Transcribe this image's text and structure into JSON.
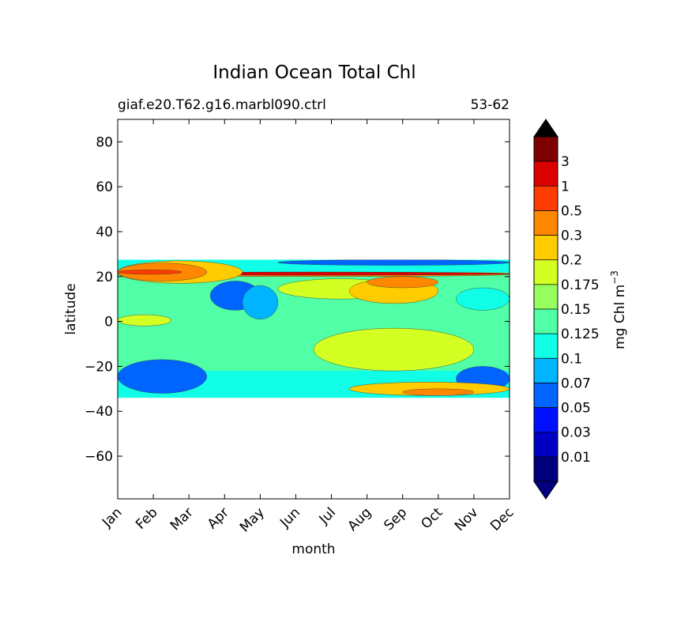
{
  "chart_data": {
    "type": "heatmap",
    "title": "Indian Ocean Total Chl",
    "subtitle_left": "giaf.e20.T62.g16.marbl090.ctrl",
    "subtitle_right": "53-62",
    "xlabel": "month",
    "ylabel": "latitude",
    "x_ticks": [
      "Jan",
      "Feb",
      "Mar",
      "Apr",
      "May",
      "Jun",
      "Jul",
      "Aug",
      "Sep",
      "Oct",
      "Nov",
      "Dec"
    ],
    "y_ticks": [
      "80",
      "60",
      "40",
      "20",
      "0",
      "−20",
      "−40",
      "−60"
    ],
    "y_tick_values": [
      80,
      60,
      40,
      20,
      0,
      -20,
      -40,
      -60
    ],
    "xlim": [
      1,
      12
    ],
    "ylim": [
      -79,
      90
    ],
    "data_lat_range": [
      -34,
      27.5
    ],
    "colorbar": {
      "label": "mg Chl m",
      "label_exponent": "−3",
      "tick_labels": [
        "0.01",
        "0.03",
        "0.05",
        "0.07",
        "0.1",
        "0.125",
        "0.15",
        "0.175",
        "0.2",
        "0.3",
        "0.5",
        "1",
        "3"
      ],
      "colors": [
        "#00007f",
        "#0000c4",
        "#0010ff",
        "#0064ff",
        "#00b4ff",
        "#10ffe6",
        "#50ffa6",
        "#96ff60",
        "#d4ff22",
        "#ffcc00",
        "#ff8800",
        "#ff3c00",
        "#dd0000",
        "#7f0000"
      ],
      "under_color": "#000080",
      "over_color": "#000000"
    },
    "bands": [
      {
        "level": 10,
        "lat": [
          22,
          20
        ],
        "x": [
          1,
          12
        ]
      },
      {
        "level": 12,
        "lat": [
          22,
          20.6
        ],
        "x": [
          1,
          12
        ]
      },
      {
        "level": 9,
        "lat": [
          27,
          17
        ],
        "x": [
          1,
          4.5
        ]
      },
      {
        "level": 10,
        "lat": [
          26,
          18
        ],
        "x": [
          1,
          3.5
        ]
      },
      {
        "level": 11,
        "lat": [
          23,
          21
        ],
        "x": [
          1,
          2.8
        ]
      },
      {
        "level": 3,
        "lat": [
          27.5,
          25
        ],
        "x": [
          5.5,
          12
        ]
      },
      {
        "level": 8,
        "lat": [
          19,
          10
        ],
        "x": [
          5.5,
          9
        ]
      },
      {
        "level": 9,
        "lat": [
          19,
          8
        ],
        "x": [
          7.5,
          10
        ]
      },
      {
        "level": 10,
        "lat": [
          20,
          15
        ],
        "x": [
          8,
          10
        ]
      },
      {
        "level": 9,
        "lat": [
          -5,
          -20
        ],
        "x": [
          7,
          10
        ]
      },
      {
        "level": 8,
        "lat": [
          -3,
          -22
        ],
        "x": [
          6.5,
          11
        ]
      },
      {
        "level": 3,
        "lat": [
          18,
          5
        ],
        "x": [
          3.6,
          5
        ]
      },
      {
        "level": 4,
        "lat": [
          16,
          1
        ],
        "x": [
          4.5,
          5.5
        ]
      },
      {
        "level": 5,
        "lat": [
          15,
          5
        ],
        "x": [
          10.5,
          12
        ]
      },
      {
        "level": 3,
        "lat": [
          -17,
          -32
        ],
        "x": [
          1,
          3.5
        ]
      },
      {
        "level": 3,
        "lat": [
          -20,
          -31
        ],
        "x": [
          10.5,
          12
        ]
      },
      {
        "level": 9,
        "lat": [
          -27,
          -33
        ],
        "x": [
          7.5,
          12
        ]
      },
      {
        "level": 10,
        "lat": [
          -30,
          -33
        ],
        "x": [
          9,
          11
        ]
      },
      {
        "level": 8,
        "lat": [
          3,
          -2
        ],
        "x": [
          1,
          2.5
        ]
      }
    ]
  }
}
